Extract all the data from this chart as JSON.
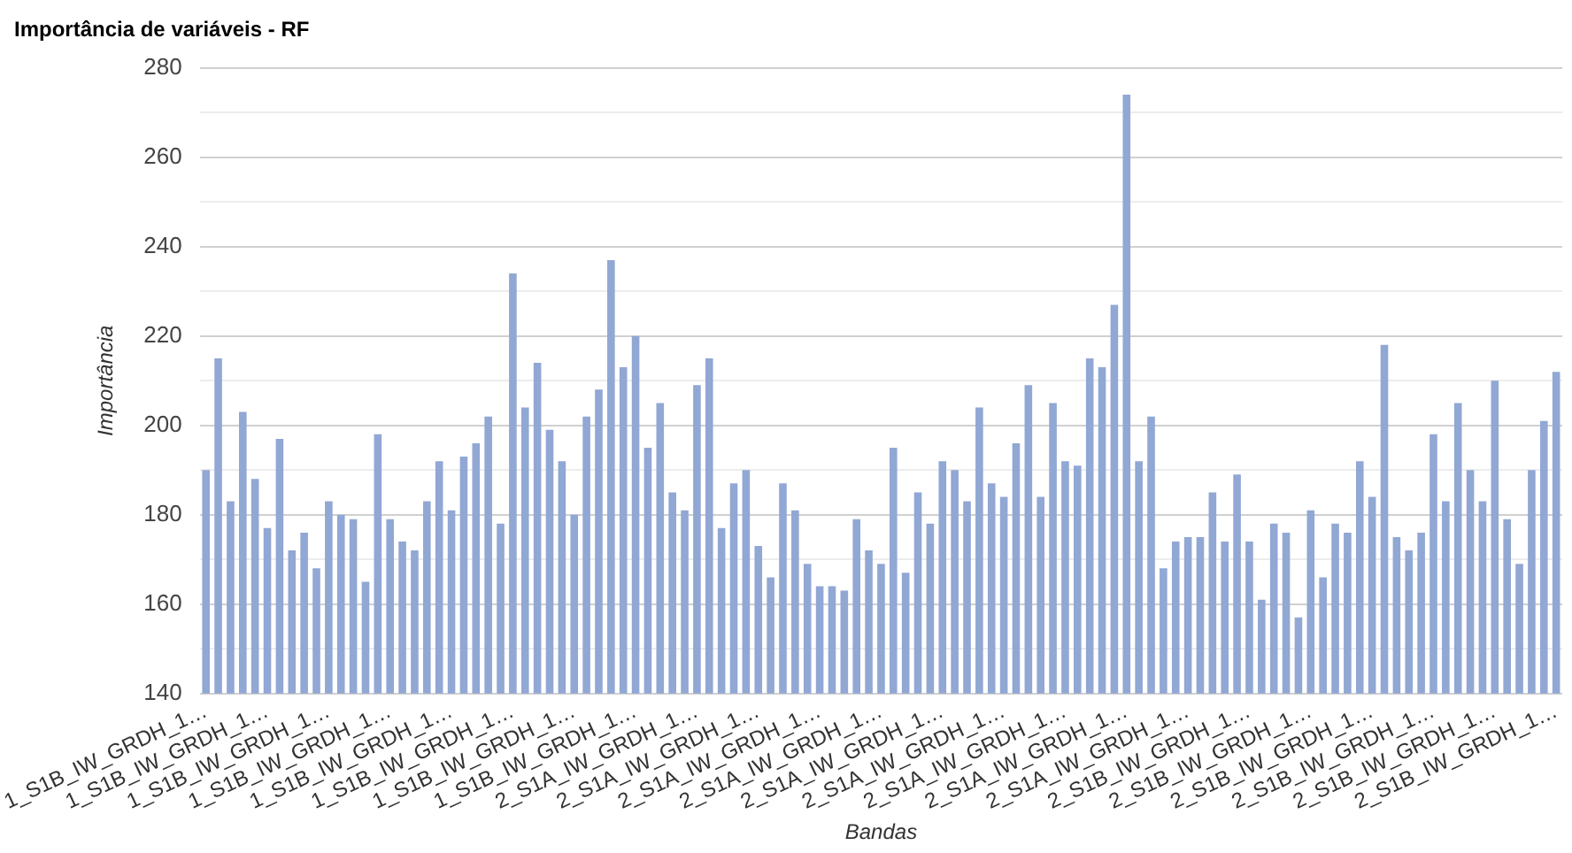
{
  "chart_data": {
    "type": "bar",
    "title": "Importância de variáveis - RF",
    "xlabel": "Bandas",
    "ylabel": "Importância",
    "categories": [
      "1_S1B_IW_GRDH_1…",
      null,
      null,
      null,
      null,
      "1_S1B_IW_GRDH_1…",
      null,
      null,
      null,
      null,
      "1_S1B_IW_GRDH_1…",
      null,
      null,
      null,
      null,
      "1_S1B_IW_GRDH_1…",
      null,
      null,
      null,
      null,
      "1_S1B_IW_GRDH_1…",
      null,
      null,
      null,
      null,
      "1_S1B_IW_GRDH_1…",
      null,
      null,
      null,
      null,
      "1_S1B_IW_GRDH_1…",
      null,
      null,
      null,
      null,
      "1_S1B_IW_GRDH_1…",
      null,
      null,
      null,
      null,
      "2_S1A_IW_GRDH_1…",
      null,
      null,
      null,
      null,
      "2_S1A_IW_GRDH_1…",
      null,
      null,
      null,
      null,
      "2_S1A_IW_GRDH_1…",
      null,
      null,
      null,
      null,
      "2_S1A_IW_GRDH_1…",
      null,
      null,
      null,
      null,
      "2_S1A_IW_GRDH_1…",
      null,
      null,
      null,
      null,
      "2_S1A_IW_GRDH_1…",
      null,
      null,
      null,
      null,
      "2_S1A_IW_GRDH_1…",
      null,
      null,
      null,
      null,
      "2_S1A_IW_GRDH_1…",
      null,
      null,
      null,
      null,
      "2_S1A_IW_GRDH_1…",
      null,
      null,
      null,
      null,
      "2_S1B_IW_GRDH_1…",
      null,
      null,
      null,
      null,
      "2_S1B_IW_GRDH_1…",
      null,
      null,
      null,
      null,
      "2_S1B_IW_GRDH_1…",
      null,
      null,
      null,
      null,
      "2_S1B_IW_GRDH_1…",
      null,
      null,
      null,
      null,
      "2_S1B_IW_GRDH_1…",
      null,
      null,
      null,
      null,
      "2_S1B_IW_GRDH_1…"
    ],
    "values": [
      190,
      215,
      183,
      203,
      188,
      177,
      197,
      172,
      176,
      168,
      183,
      180,
      179,
      165,
      198,
      179,
      174,
      172,
      183,
      192,
      181,
      193,
      196,
      202,
      178,
      234,
      204,
      214,
      199,
      192,
      180,
      202,
      208,
      237,
      213,
      220,
      195,
      205,
      185,
      181,
      209,
      215,
      177,
      187,
      190,
      173,
      166,
      187,
      181,
      169,
      164,
      164,
      163,
      179,
      172,
      169,
      195,
      167,
      185,
      178,
      192,
      190,
      183,
      204,
      187,
      184,
      196,
      209,
      184,
      205,
      192,
      191,
      215,
      213,
      227,
      274,
      192,
      202,
      168,
      174,
      175,
      175,
      185,
      174,
      189,
      174,
      161,
      178,
      176,
      157,
      181,
      166,
      178,
      176,
      192,
      184,
      218,
      175,
      172,
      176,
      198,
      183,
      205,
      190,
      183,
      210,
      179,
      169,
      190,
      201,
      212
    ],
    "color": "#91a7d4",
    "ylim": [
      140,
      280
    ],
    "yticks": [
      140,
      {
        "value": 150,
        "label": null
      },
      160,
      {
        "value": 170,
        "label": null
      },
      180,
      {
        "value": 190,
        "label": null
      },
      200,
      {
        "value": 210,
        "label": null
      },
      220,
      {
        "value": 230,
        "label": null
      },
      240,
      {
        "value": 250,
        "label": null
      },
      260,
      {
        "value": 270,
        "label": null
      },
      280
    ],
    "grid": "y",
    "legend": false
  }
}
